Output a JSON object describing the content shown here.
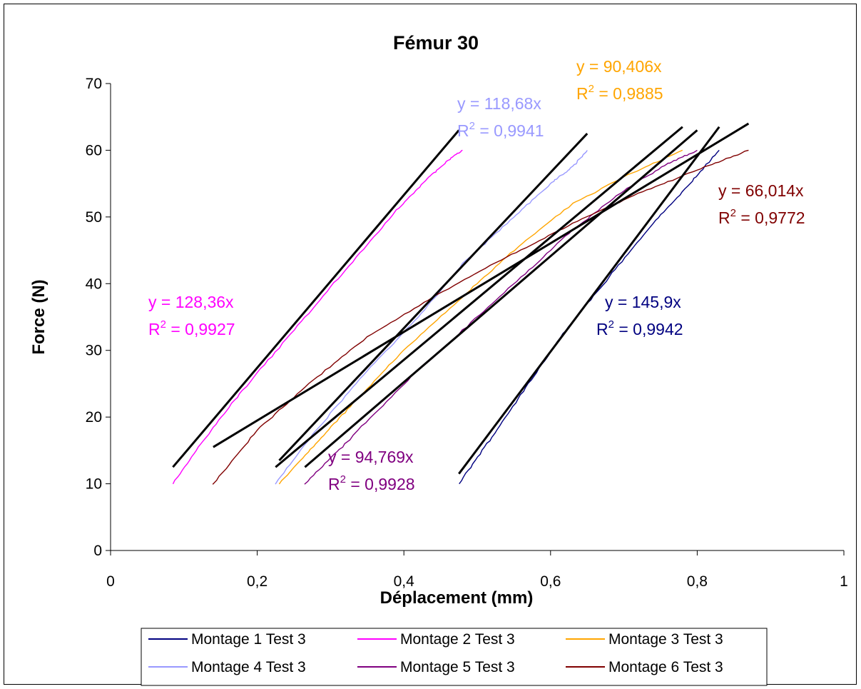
{
  "chart_data": {
    "type": "line",
    "title": "Fémur 30",
    "xlabel": "Déplacement (mm)",
    "ylabel": "Force (N)",
    "xlim": [
      0,
      1
    ],
    "ylim": [
      0,
      70
    ],
    "x_ticks": [
      0,
      0.2,
      0.4,
      0.6,
      0.8,
      1
    ],
    "x_tick_labels": [
      "0",
      "0,2",
      "0,4",
      "0,6",
      "0,8",
      "1"
    ],
    "y_ticks": [
      0,
      10,
      20,
      30,
      40,
      50,
      60,
      70
    ],
    "y_tick_labels": [
      "0",
      "10",
      "20",
      "30",
      "40",
      "50",
      "60",
      "70"
    ],
    "grid": false,
    "legend_position": "bottom",
    "series": [
      {
        "name": "Montage 1 Test 3",
        "color": "#000080",
        "points": [
          [
            0.475,
            10
          ],
          [
            0.52,
            17
          ],
          [
            0.57,
            25
          ],
          [
            0.62,
            33
          ],
          [
            0.68,
            41
          ],
          [
            0.74,
            49
          ],
          [
            0.79,
            55
          ],
          [
            0.83,
            60
          ]
        ],
        "trendline": {
          "x": [
            0.475,
            0.83
          ],
          "y": [
            11.5,
            63.5
          ]
        },
        "equation": "y = 145,9x",
        "r2_value": "0,9942"
      },
      {
        "name": "Montage 2 Test 3",
        "color": "#FF00FF",
        "points": [
          [
            0.085,
            10
          ],
          [
            0.13,
            17
          ],
          [
            0.18,
            24
          ],
          [
            0.25,
            33
          ],
          [
            0.32,
            42
          ],
          [
            0.39,
            51
          ],
          [
            0.43,
            55.5
          ],
          [
            0.46,
            58.5
          ],
          [
            0.48,
            60
          ]
        ],
        "trendline": {
          "x": [
            0.085,
            0.475
          ],
          "y": [
            12.5,
            63
          ]
        },
        "equation": "y = 128,36x",
        "r2_value": "0,9927"
      },
      {
        "name": "Montage 3 Test 3",
        "color": "#FFA500",
        "points": [
          [
            0.23,
            10
          ],
          [
            0.28,
            16
          ],
          [
            0.33,
            22
          ],
          [
            0.4,
            30
          ],
          [
            0.48,
            38
          ],
          [
            0.55,
            45
          ],
          [
            0.63,
            52
          ],
          [
            0.7,
            56
          ],
          [
            0.78,
            60
          ]
        ],
        "trendline": {
          "x": [
            0.225,
            0.78
          ],
          "y": [
            12.5,
            63.5
          ]
        },
        "equation": "y = 90,406x",
        "r2_value": "0,9885"
      },
      {
        "name": "Montage 4 Test 3",
        "color": "#9999FF",
        "points": [
          [
            0.225,
            10
          ],
          [
            0.28,
            18
          ],
          [
            0.35,
            27
          ],
          [
            0.42,
            35
          ],
          [
            0.48,
            43
          ],
          [
            0.55,
            50
          ],
          [
            0.6,
            55
          ],
          [
            0.63,
            57.5
          ],
          [
            0.65,
            60
          ]
        ],
        "trendline": {
          "x": [
            0.23,
            0.65
          ],
          "y": [
            13.5,
            62.5
          ]
        },
        "equation": "y = 118,68x",
        "r2_value": "0,9941"
      },
      {
        "name": "Montage 5 Test 3",
        "color": "#800080",
        "points": [
          [
            0.265,
            10
          ],
          [
            0.32,
            16
          ],
          [
            0.4,
            25
          ],
          [
            0.48,
            33
          ],
          [
            0.56,
            41
          ],
          [
            0.63,
            48
          ],
          [
            0.7,
            54
          ],
          [
            0.76,
            58
          ],
          [
            0.8,
            60
          ]
        ],
        "trendline": {
          "x": [
            0.265,
            0.8
          ],
          "y": [
            12.5,
            63
          ]
        },
        "equation": "y = 94,769x",
        "r2_value": "0,9928"
      },
      {
        "name": "Montage 6 Test 3",
        "color": "#800000",
        "points": [
          [
            0.14,
            10
          ],
          [
            0.2,
            18
          ],
          [
            0.27,
            25
          ],
          [
            0.35,
            32
          ],
          [
            0.44,
            38
          ],
          [
            0.54,
            44
          ],
          [
            0.63,
            49
          ],
          [
            0.72,
            53.5
          ],
          [
            0.8,
            57
          ],
          [
            0.87,
            60
          ]
        ],
        "trendline": {
          "x": [
            0.14,
            0.87
          ],
          "y": [
            15.5,
            64
          ]
        },
        "equation": "y = 66,014x",
        "r2_value": "0,9772"
      }
    ]
  }
}
